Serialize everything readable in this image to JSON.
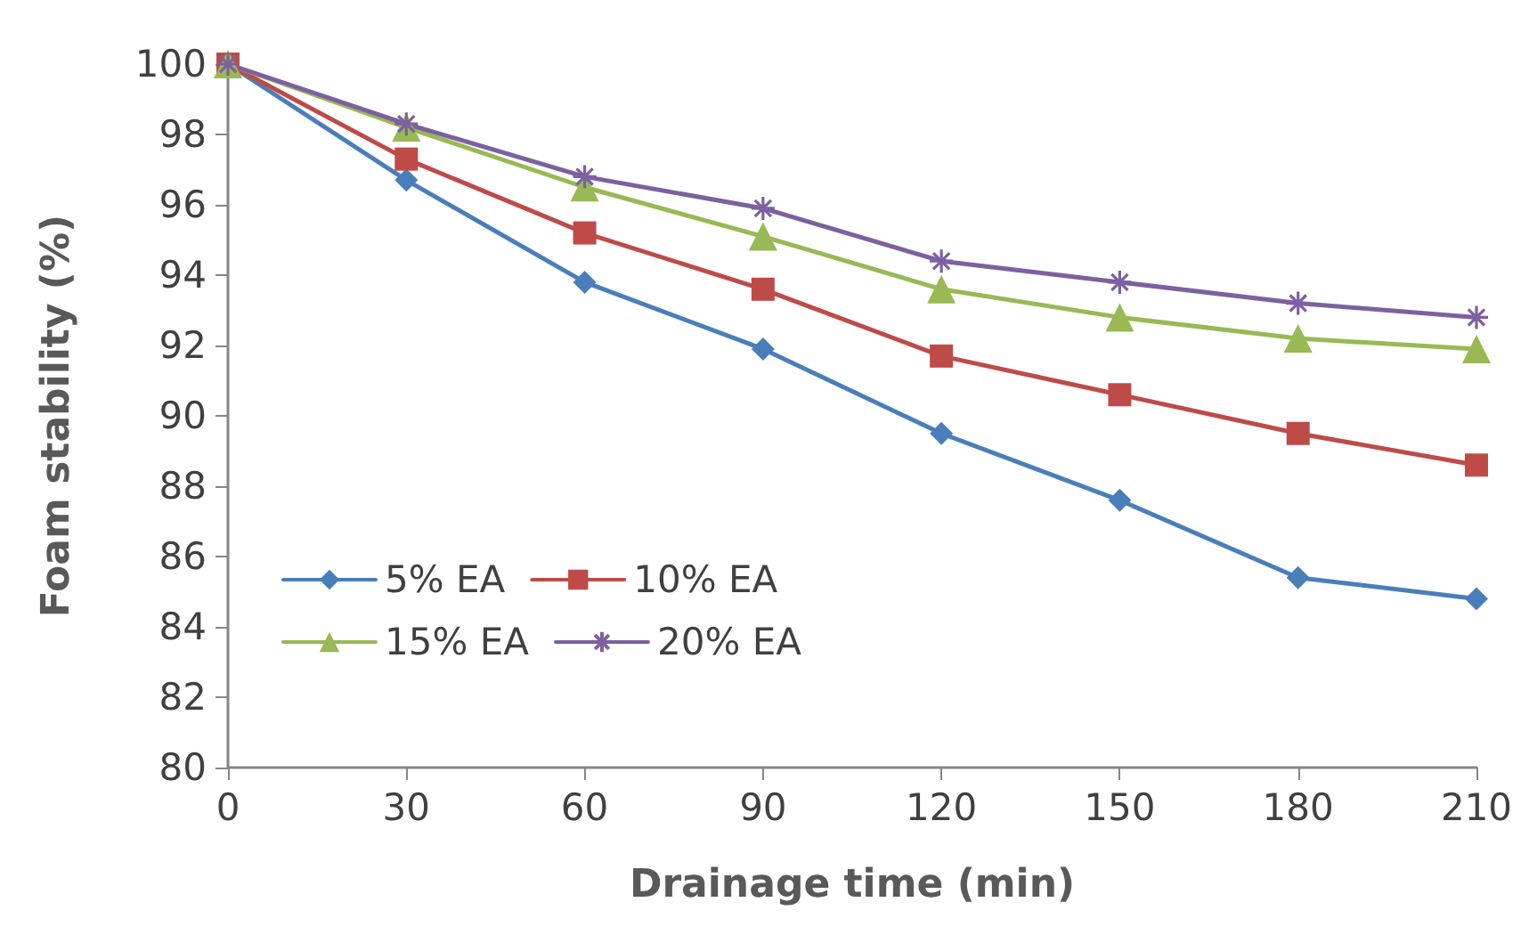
{
  "chart_data": {
    "type": "line",
    "xlabel": "Drainage time (min)",
    "ylabel": "Foam stability (%)",
    "x": [
      0,
      30,
      60,
      90,
      120,
      150,
      180,
      210
    ],
    "series": [
      {
        "name": "5% EA",
        "color": "#4a7ebb",
        "marker": "diamond",
        "values": [
          100,
          96.7,
          93.8,
          91.9,
          89.5,
          87.6,
          85.4,
          84.8
        ]
      },
      {
        "name": "10% EA",
        "color": "#be4b48",
        "marker": "square",
        "values": [
          100,
          97.3,
          95.2,
          93.6,
          91.7,
          90.6,
          89.5,
          88.6
        ]
      },
      {
        "name": "15% EA",
        "color": "#98b954",
        "marker": "triangle",
        "values": [
          100,
          98.2,
          96.5,
          95.1,
          93.6,
          92.8,
          92.2,
          91.9
        ]
      },
      {
        "name": "20% EA",
        "color": "#7d60a0",
        "marker": "cross",
        "values": [
          100,
          98.3,
          96.8,
          95.9,
          94.4,
          93.8,
          93.2,
          92.8
        ]
      }
    ],
    "xlim": [
      0,
      210
    ],
    "xticks": [
      0,
      30,
      60,
      90,
      120,
      150,
      180,
      210
    ],
    "ylim": [
      80,
      100
    ],
    "yticks": [
      80,
      82,
      84,
      86,
      88,
      90,
      92,
      94,
      96,
      98,
      100
    ],
    "grid": false,
    "legend": "bottom left",
    "line_style": "solid"
  }
}
